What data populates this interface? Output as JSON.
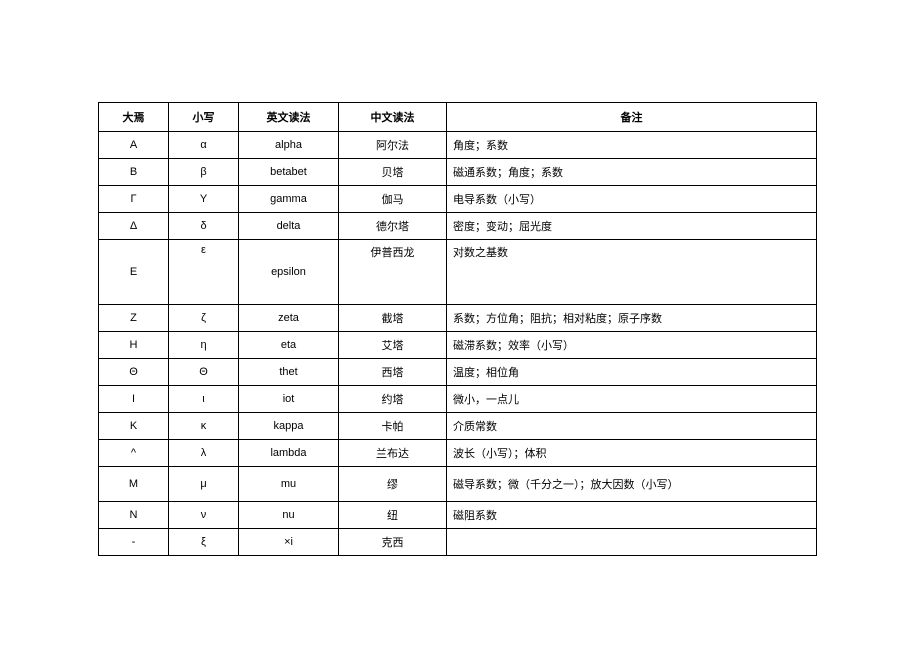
{
  "table": {
    "headers": {
      "c1": "大焉",
      "c2": "小写",
      "c3": "英文读法",
      "c4": "中文读法",
      "c5": "备注"
    },
    "rows": [
      {
        "rowclass": "",
        "c1": "A",
        "c2": "α",
        "c3": "alpha",
        "c4": "阿尔法",
        "c5": "角度；系数"
      },
      {
        "rowclass": "",
        "c1": "B",
        "c2": "β",
        "c3": "betabet",
        "c4": "贝塔",
        "c5": "磁通系数；角度；系数"
      },
      {
        "rowclass": "",
        "c1": "Γ",
        "c2": "Y",
        "c3": "gamma",
        "c4": "伽马",
        "c5": "电导系数（小写）"
      },
      {
        "rowclass": "",
        "c1": "Δ",
        "c2": "δ",
        "c3": "delta",
        "c4": "德尔塔",
        "c5": "密度；变动；屈光度"
      },
      {
        "rowclass": "tall",
        "c1": "E",
        "c2": "ε",
        "c3": "epsilon",
        "c4": "伊普西龙",
        "c5": "对数之基数"
      },
      {
        "rowclass": "",
        "c1": "Z",
        "c2": "ζ",
        "c3": "zeta",
        "c4": "截塔",
        "c5": "系数；方位角；阻抗；相对粘度；原子序数"
      },
      {
        "rowclass": "",
        "c1": "H",
        "c2": "η",
        "c3": "eta",
        "c4": "艾塔",
        "c5": "磁滞系数；效率（小写）"
      },
      {
        "rowclass": "",
        "c1": "Θ",
        "c2": "Θ",
        "c3": "thet",
        "c4": "西塔",
        "c5": "温度；相位角"
      },
      {
        "rowclass": "",
        "c1": "I",
        "c2": "ι",
        "c3": "iot",
        "c4": "约塔",
        "c5": "微小，一点儿"
      },
      {
        "rowclass": "",
        "c1": "K",
        "c2": "κ",
        "c3": "kappa",
        "c4": "卡帕",
        "c5": "介质常数"
      },
      {
        "rowclass": "",
        "c1": "^",
        "c2": "λ",
        "c3": "lambda",
        "c4": "兰布达",
        "c5": "波长（小写）；体积"
      },
      {
        "rowclass": "mid",
        "c1": "M",
        "c2": "μ",
        "c3": "mu",
        "c4": "缪",
        "c5": "磁导系数；微（千分之一）；放大因数（小写）"
      },
      {
        "rowclass": "",
        "c1": "N",
        "c2": "ν",
        "c3": "nu",
        "c4": "纽",
        "c5": "磁阻系数"
      },
      {
        "rowclass": "",
        "c1": "-",
        "c2": "ξ",
        "c3": "×i",
        "c4": "克西",
        "c5": ""
      }
    ]
  }
}
